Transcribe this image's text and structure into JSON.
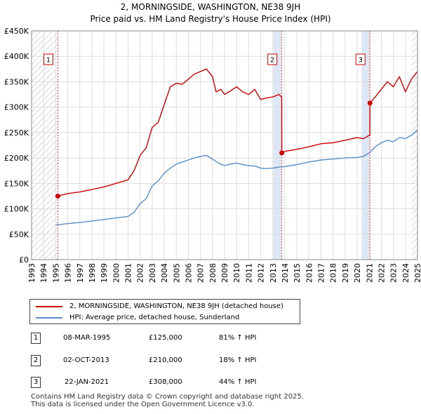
{
  "header": {
    "title": "2, MORNINGSIDE, WASHINGTON, NE38 9JH",
    "subtitle": "Price paid vs. HM Land Registry's House Price Index (HPI)"
  },
  "chart_data": {
    "type": "line",
    "title": "2, MORNINGSIDE, WASHINGTON, NE38 9JH",
    "subtitle": "Price paid vs. HM Land Registry's House Price Index (HPI)",
    "xlabel": "",
    "ylabel": "",
    "xlim": [
      1993,
      2025
    ],
    "ylim": [
      0,
      450000
    ],
    "y_ticks": [
      0,
      50000,
      100000,
      150000,
      200000,
      250000,
      300000,
      350000,
      400000,
      450000
    ],
    "y_tick_labels": [
      "£0",
      "£50K",
      "£100K",
      "£150K",
      "£200K",
      "£250K",
      "£300K",
      "£350K",
      "£400K",
      "£450K"
    ],
    "x_ticks": [
      1993,
      1994,
      1995,
      1996,
      1997,
      1998,
      1999,
      2000,
      2001,
      2002,
      2003,
      2004,
      2005,
      2006,
      2007,
      2008,
      2009,
      2010,
      2011,
      2012,
      2013,
      2014,
      2015,
      2016,
      2017,
      2018,
      2019,
      2020,
      2021,
      2022,
      2023,
      2024,
      2025
    ],
    "x_tick_labels": [
      "1993",
      "1994",
      "1995",
      "1996",
      "1997",
      "1998",
      "1999",
      "2000",
      "2001",
      "2002",
      "2003",
      "2004",
      "2005",
      "2006",
      "2007",
      "2008",
      "2009",
      "2010",
      "2011",
      "2012",
      "2013",
      "2014",
      "2015",
      "2016",
      "2017",
      "2018",
      "2019",
      "2020",
      "2021",
      "2022",
      "2023",
      "2024",
      "2025"
    ],
    "grid": true,
    "hatched_ranges": [
      [
        1993,
        1995.18
      ],
      [
        2024.5,
        2025
      ]
    ],
    "shaded_ranges": [
      [
        1995.18,
        2013.75
      ],
      [
        2013.75,
        2021.06
      ]
    ],
    "series": [
      {
        "name": "2, MORNINGSIDE, WASHINGTON, NE38 9JH (detached house)",
        "color": "#cc0000",
        "x": [
          1995.18,
          1996,
          1997,
          1998,
          1999,
          2000,
          2001,
          2001.5,
          2002,
          2002.5,
          2003,
          2003.5,
          2004,
          2004.5,
          2005,
          2005.5,
          2006,
          2006.5,
          2007,
          2007.5,
          2008,
          2008.3,
          2008.7,
          2009,
          2009.5,
          2010,
          2010.5,
          2011,
          2011.5,
          2012,
          2012.5,
          2013,
          2013.5,
          2013.74,
          2013.75,
          2014,
          2015,
          2016,
          2017,
          2018,
          2019,
          2020,
          2020.5,
          2021.05,
          2021.06,
          2021.5,
          2022,
          2022.5,
          2023,
          2023.5,
          2024,
          2024.5,
          2025
        ],
        "values": [
          125000,
          130000,
          133000,
          138000,
          143000,
          150000,
          157000,
          175000,
          205000,
          220000,
          260000,
          270000,
          305000,
          340000,
          347000,
          345000,
          355000,
          365000,
          370000,
          375000,
          360000,
          330000,
          335000,
          325000,
          332000,
          340000,
          330000,
          325000,
          335000,
          315000,
          318000,
          320000,
          325000,
          320000,
          210000,
          213000,
          217000,
          222000,
          228000,
          230000,
          235000,
          240000,
          238000,
          245000,
          308000,
          320000,
          335000,
          350000,
          340000,
          360000,
          330000,
          355000,
          370000
        ]
      },
      {
        "name": "HPI: Average price, detached house, Sunderland",
        "color": "#5b8ec6",
        "x": [
          1995,
          1996,
          1997,
          1998,
          1999,
          2000,
          2001,
          2001.5,
          2002,
          2002.5,
          2003,
          2003.5,
          2004,
          2004.5,
          2005,
          2005.5,
          2006,
          2006.5,
          2007,
          2007.5,
          2008,
          2008.5,
          2009,
          2009.5,
          2010,
          2010.5,
          2011,
          2011.5,
          2012,
          2012.5,
          2013,
          2013.5,
          2014,
          2015,
          2016,
          2017,
          2018,
          2019,
          2020,
          2020.5,
          2021,
          2021.5,
          2022,
          2022.5,
          2023,
          2023.5,
          2024,
          2024.5,
          2025
        ],
        "values": [
          68000,
          71000,
          73000,
          76000,
          79000,
          82000,
          85000,
          93000,
          110000,
          120000,
          145000,
          155000,
          170000,
          180000,
          188000,
          192000,
          196000,
          200000,
          203000,
          205000,
          198000,
          190000,
          185000,
          188000,
          190000,
          187000,
          185000,
          184000,
          180000,
          179000,
          180000,
          182000,
          183000,
          187000,
          192000,
          196000,
          198000,
          200000,
          201000,
          203000,
          210000,
          222000,
          230000,
          235000,
          232000,
          240000,
          238000,
          245000,
          255000
        ]
      }
    ],
    "sales": [
      {
        "n": "1",
        "date": "08-MAR-1995",
        "x": 1995.18,
        "price_value": 125000
      },
      {
        "n": "2",
        "date": "02-OCT-2013",
        "x": 2013.75,
        "price_value": 210000
      },
      {
        "n": "3",
        "date": "22-JAN-2021",
        "x": 2021.06,
        "price_value": 308000
      }
    ]
  },
  "legend": {
    "red_label": "2, MORNINGSIDE, WASHINGTON, NE38 9JH (detached house)",
    "blue_label": "HPI: Average price, detached house, Sunderland"
  },
  "colors": {
    "price_line": "#cc0000",
    "hpi_line": "#5b8ec6",
    "shade": "#dde6f4",
    "grid": "#dddddd"
  },
  "table": {
    "rows": [
      {
        "n": "1",
        "date": "08-MAR-1995",
        "price": "£125,000",
        "hpi": "81% ↑ HPI"
      },
      {
        "n": "2",
        "date": "02-OCT-2013",
        "price": "£210,000",
        "hpi": "18% ↑ HPI"
      },
      {
        "n": "3",
        "date": "22-JAN-2021",
        "price": "£308,000",
        "hpi": "44% ↑ HPI"
      }
    ]
  },
  "footer": {
    "line1": "Contains HM Land Registry data © Crown copyright and database right 2025.",
    "line2": "This data is licensed under the Open Government Licence v3.0."
  }
}
